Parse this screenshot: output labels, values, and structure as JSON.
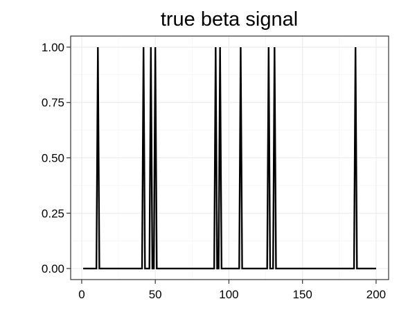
{
  "chart_data": {
    "type": "line",
    "title": "true beta signal",
    "xlabel": "",
    "ylabel": "",
    "xlim": [
      -7.5,
      208.5
    ],
    "ylim": [
      -0.05,
      1.05
    ],
    "x_ticks": [
      0,
      50,
      100,
      150,
      200
    ],
    "x_tick_labels": [
      "0",
      "50",
      "100",
      "150",
      "200"
    ],
    "y_ticks": [
      0,
      0.25,
      0.5,
      0.75,
      1
    ],
    "y_tick_labels": [
      "0.00",
      "0.25",
      "0.50",
      "0.75",
      "1.00"
    ],
    "grid": true,
    "theme": "bw",
    "legend": "none",
    "line_color": "#000000",
    "series": [
      {
        "n": 200,
        "nonzero_x": [
          11,
          42,
          47,
          50,
          91,
          94,
          108,
          127,
          131,
          186
        ],
        "nonzero_value": 1,
        "baseline_value": 0
      }
    ]
  }
}
